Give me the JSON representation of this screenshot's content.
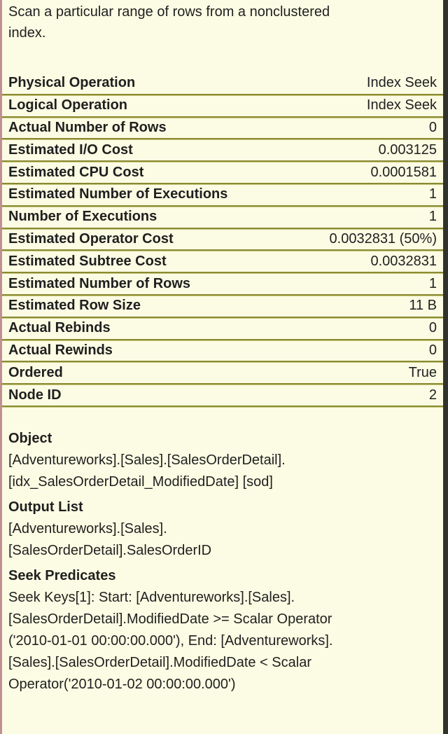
{
  "tooltip": {
    "description": "Scan a particular range of rows from a nonclustered\nindex.",
    "properties": [
      {
        "label": "Physical Operation",
        "value": "Index Seek"
      },
      {
        "label": "Logical Operation",
        "value": "Index Seek"
      },
      {
        "label": "Actual Number of Rows",
        "value": "0"
      },
      {
        "label": "Estimated I/O Cost",
        "value": "0.003125"
      },
      {
        "label": "Estimated CPU Cost",
        "value": "0.0001581"
      },
      {
        "label": "Estimated Number of Executions",
        "value": "1"
      },
      {
        "label": "Number of Executions",
        "value": "1"
      },
      {
        "label": "Estimated Operator Cost",
        "value": "0.0032831 (50%)"
      },
      {
        "label": "Estimated Subtree Cost",
        "value": "0.0032831"
      },
      {
        "label": "Estimated Number of Rows",
        "value": "1"
      },
      {
        "label": "Estimated Row Size",
        "value": "11 B"
      },
      {
        "label": "Actual Rebinds",
        "value": "0"
      },
      {
        "label": "Actual Rewinds",
        "value": "0"
      },
      {
        "label": "Ordered",
        "value": "True"
      },
      {
        "label": "Node ID",
        "value": "2"
      }
    ],
    "sections": [
      {
        "heading": "Object",
        "text": "[Adventureworks].[Sales].[SalesOrderDetail].\n[idx_SalesOrderDetail_ModifiedDate] [sod]"
      },
      {
        "heading": "Output List",
        "text": "[Adventureworks].[Sales].\n[SalesOrderDetail].SalesOrderID"
      },
      {
        "heading": "Seek Predicates",
        "text": "Seek Keys[1]: Start: [Adventureworks].[Sales].\n[SalesOrderDetail].ModifiedDate >= Scalar Operator\n('2010-01-01 00:00:00.000'), End: [Adventureworks].\n[Sales].[SalesOrderDetail].ModifiedDate < Scalar\nOperator('2010-01-02 00:00:00.000')"
      }
    ],
    "colors": {
      "background": "#FCFCE4",
      "text": "#1F1F1F",
      "separator": "#8A8A33",
      "separator_light": "#C9C980",
      "border_right": "#32322C",
      "border_left": "#C18F93"
    }
  }
}
